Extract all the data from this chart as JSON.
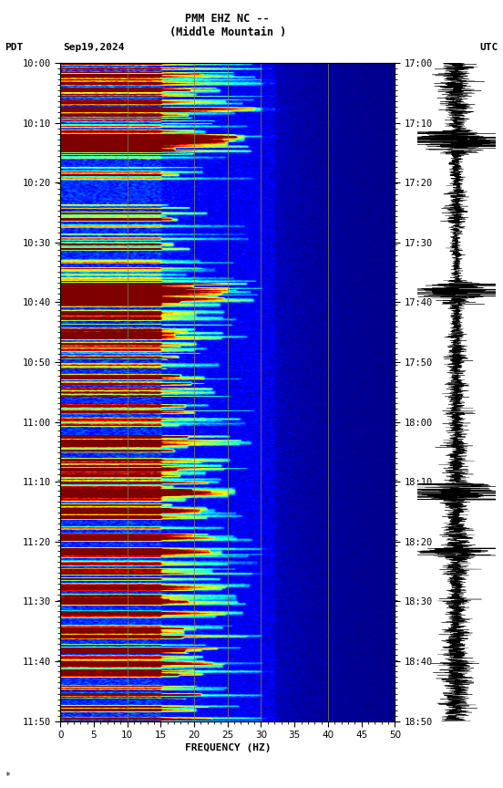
{
  "title_line1": "PMM EHZ NC --",
  "title_line2": "(Middle Mountain )",
  "label_left": "PDT",
  "label_date": "Sep19,2024",
  "label_right": "UTC",
  "xlabel": "FREQUENCY (HZ)",
  "freq_min": 0,
  "freq_max": 50,
  "freq_ticks": [
    0,
    5,
    10,
    15,
    20,
    25,
    30,
    35,
    40,
    45,
    50
  ],
  "pdt_ticks": [
    "10:00",
    "10:10",
    "10:20",
    "10:30",
    "10:40",
    "10:50",
    "11:00",
    "11:10",
    "11:20",
    "11:30",
    "11:40",
    "11:50"
  ],
  "utc_ticks": [
    "17:00",
    "17:10",
    "17:20",
    "17:30",
    "17:40",
    "17:50",
    "18:00",
    "18:10",
    "18:20",
    "18:30",
    "18:40",
    "18:50"
  ],
  "n_time": 720,
  "n_freq": 250,
  "bg_color": "#ffffff",
  "vertical_lines_freq": [
    10,
    20,
    25,
    30,
    40
  ],
  "vline_color": "#808050",
  "vline_alpha": 0.8,
  "vline_lw": 0.7
}
